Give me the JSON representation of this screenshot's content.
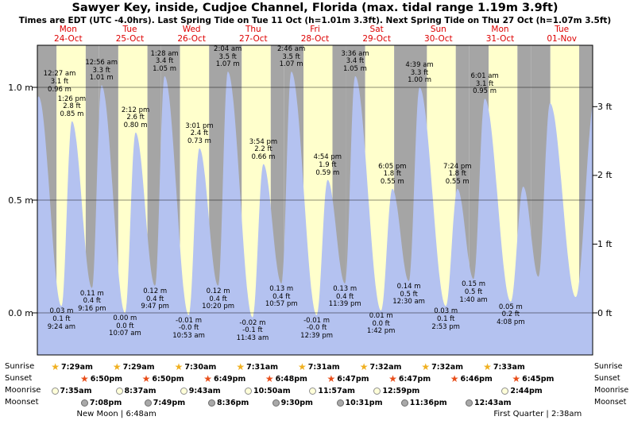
{
  "title": "Sawyer Key, inside, Cudjoe Channel, Florida (max. tidal range 1.19m 3.9ft)",
  "subtitle": "Times are EDT (UTC -4.0hrs). Last Spring Tide on Tue 11 Oct (h=1.01m 3.3ft). Next Spring Tide on Thu 27 Oct (h=1.07m 3.5ft)",
  "colors": {
    "day_band": "#ffffcc",
    "night_band": "#a5a5a5",
    "tide_fill": "#b4c2f0",
    "day_label": "#dd0000",
    "sunrise_star": "#f0b020",
    "sunset_star": "#e84e1a",
    "moonrise_circle": "#ffffd9",
    "moonrise_border": "#8f8f8f",
    "moonset_circle": "#a9a9a9",
    "moonset_border": "#6e6e6e"
  },
  "chart_data": {
    "type": "area",
    "title": "Tide height curve for Sawyer Key, inside, Cudjoe Channel, Florida",
    "ylim_m": [
      -0.19,
      1.19
    ],
    "hours_total": 216,
    "grid": true,
    "y_axis_left": [
      {
        "label": "1.0 m",
        "m": 1.0
      },
      {
        "label": "0.5 m",
        "m": 0.5
      },
      {
        "label": "0.0 m",
        "m": 0.0
      }
    ],
    "y_axis_right": [
      {
        "label": "3 ft",
        "ft": 3
      },
      {
        "label": "2 ft",
        "ft": 2
      },
      {
        "label": "1 ft",
        "ft": 1
      },
      {
        "label": "0 ft",
        "ft": 0
      }
    ],
    "x_axis_days": [
      {
        "weekday": "Mon",
        "date": "24-Oct"
      },
      {
        "weekday": "Tue",
        "date": "25-Oct"
      },
      {
        "weekday": "Wed",
        "date": "26-Oct"
      },
      {
        "weekday": "Thu",
        "date": "27-Oct"
      },
      {
        "weekday": "Fri",
        "date": "28-Oct"
      },
      {
        "weekday": "Sat",
        "date": "29-Oct"
      },
      {
        "weekday": "Sun",
        "date": "30-Oct"
      },
      {
        "weekday": "Mon",
        "date": "31-Oct"
      },
      {
        "weekday": "Tue",
        "date": "01-Nov"
      }
    ],
    "tide_events": [
      {
        "kind": "high",
        "day_index": 0,
        "time": "12:27 am",
        "ft": "3.1 ft",
        "m": "0.96 m"
      },
      {
        "kind": "low",
        "day_index": 0,
        "time": "9:24 am",
        "ft": "0.1 ft",
        "m": "0.03 m"
      },
      {
        "kind": "high",
        "day_index": 0,
        "time": "1:26 pm",
        "ft": "2.8 ft",
        "m": "0.85 m"
      },
      {
        "kind": "low",
        "day_index": 0,
        "time": "9:16 pm",
        "ft": "0.4 ft",
        "m": "0.11 m"
      },
      {
        "kind": "high",
        "day_index": 1,
        "time": "12:56 am",
        "ft": "3.3 ft",
        "m": "1.01 m"
      },
      {
        "kind": "low",
        "day_index": 1,
        "time": "10:07 am",
        "ft": "0.0 ft",
        "m": "0.00 m"
      },
      {
        "kind": "high",
        "day_index": 1,
        "time": "2:12 pm",
        "ft": "2.6 ft",
        "m": "0.80 m"
      },
      {
        "kind": "low",
        "day_index": 1,
        "time": "9:47 pm",
        "ft": "0.4 ft",
        "m": "0.12 m"
      },
      {
        "kind": "high",
        "day_index": 2,
        "time": "1:28 am",
        "ft": "3.4 ft",
        "m": "1.05 m"
      },
      {
        "kind": "low",
        "day_index": 2,
        "time": "10:53 am",
        "ft": "-0.0 ft",
        "m": "-0.01 m"
      },
      {
        "kind": "high",
        "day_index": 2,
        "time": "3:01 pm",
        "ft": "2.4 ft",
        "m": "0.73 m"
      },
      {
        "kind": "low",
        "day_index": 2,
        "time": "10:20 pm",
        "ft": "0.4 ft",
        "m": "0.12 m"
      },
      {
        "kind": "high",
        "day_index": 3,
        "time": "2:04 am",
        "ft": "3.5 ft",
        "m": "1.07 m"
      },
      {
        "kind": "low",
        "day_index": 3,
        "time": "11:43 am",
        "ft": "-0.1 ft",
        "m": "-0.02 m"
      },
      {
        "kind": "high",
        "day_index": 3,
        "time": "3:54 pm",
        "ft": "2.2 ft",
        "m": "0.66 m"
      },
      {
        "kind": "low",
        "day_index": 3,
        "time": "10:57 pm",
        "ft": "0.4 ft",
        "m": "0.13 m"
      },
      {
        "kind": "high",
        "day_index": 4,
        "time": "2:46 am",
        "ft": "3.5 ft",
        "m": "1.07 m"
      },
      {
        "kind": "low",
        "day_index": 4,
        "time": "12:39 pm",
        "ft": "-0.0 ft",
        "m": "-0.01 m"
      },
      {
        "kind": "high",
        "day_index": 4,
        "time": "4:54 pm",
        "ft": "1.9 ft",
        "m": "0.59 m"
      },
      {
        "kind": "low",
        "day_index": 4,
        "time": "11:39 pm",
        "ft": "0.4 ft",
        "m": "0.13 m"
      },
      {
        "kind": "high",
        "day_index": 5,
        "time": "3:36 am",
        "ft": "3.4 ft",
        "m": "1.05 m"
      },
      {
        "kind": "low",
        "day_index": 5,
        "time": "1:42 pm",
        "ft": "0.0 ft",
        "m": "0.01 m"
      },
      {
        "kind": "high",
        "day_index": 5,
        "time": "6:05 pm",
        "ft": "1.8 ft",
        "m": "0.55 m"
      },
      {
        "kind": "low",
        "day_index": 6,
        "time": "12:30 am",
        "ft": "0.5 ft",
        "m": "0.14 m"
      },
      {
        "kind": "high",
        "day_index": 6,
        "time": "4:39 am",
        "ft": "3.3 ft",
        "m": "1.00 m"
      },
      {
        "kind": "low",
        "day_index": 6,
        "time": "2:53 pm",
        "ft": "0.1 ft",
        "m": "0.03 m"
      },
      {
        "kind": "high",
        "day_index": 6,
        "time": "7:24 pm",
        "ft": "1.8 ft",
        "m": "0.55 m"
      },
      {
        "kind": "low",
        "day_index": 7,
        "time": "1:40 am",
        "ft": "0.5 ft",
        "m": "0.15 m"
      },
      {
        "kind": "high",
        "day_index": 7,
        "time": "6:01 am",
        "ft": "3.1 ft",
        "m": "0.95 m"
      },
      {
        "kind": "low",
        "day_index": 7,
        "time": "4:08 pm",
        "ft": "0.2 ft",
        "m": "0.05 m"
      }
    ],
    "sun_moon": {
      "sunrise": {
        "label": "Sunrise",
        "entries": [
          {
            "day_index": 0,
            "time": "7:29am"
          },
          {
            "day_index": 1,
            "time": "7:29am"
          },
          {
            "day_index": 2,
            "time": "7:30am"
          },
          {
            "day_index": 3,
            "time": "7:31am"
          },
          {
            "day_index": 4,
            "time": "7:31am"
          },
          {
            "day_index": 5,
            "time": "7:32am"
          },
          {
            "day_index": 6,
            "time": "7:32am"
          },
          {
            "day_index": 7,
            "time": "7:33am"
          }
        ]
      },
      "sunset": {
        "label": "Sunset",
        "entries": [
          {
            "day_index": 0,
            "time": "6:50pm"
          },
          {
            "day_index": 1,
            "time": "6:50pm"
          },
          {
            "day_index": 2,
            "time": "6:49pm"
          },
          {
            "day_index": 3,
            "time": "6:48pm"
          },
          {
            "day_index": 4,
            "time": "6:47pm"
          },
          {
            "day_index": 5,
            "time": "6:47pm"
          },
          {
            "day_index": 6,
            "time": "6:46pm"
          },
          {
            "day_index": 7,
            "time": "6:45pm"
          }
        ]
      },
      "moonrise": {
        "label": "Moonrise",
        "entries": [
          {
            "day_index": 0,
            "time": "7:35am"
          },
          {
            "day_index": 1,
            "time": "8:37am"
          },
          {
            "day_index": 2,
            "time": "9:43am"
          },
          {
            "day_index": 3,
            "time": "10:50am"
          },
          {
            "day_index": 4,
            "time": "11:57am"
          },
          {
            "day_index": 5,
            "time": "12:59pm"
          },
          {
            "day_index": 7,
            "time": "2:44pm"
          }
        ]
      },
      "moonset": {
        "label": "Moonset",
        "entries": [
          {
            "day_index": 0,
            "time": "7:08pm"
          },
          {
            "day_index": 1,
            "time": "7:49pm"
          },
          {
            "day_index": 2,
            "time": "8:36pm"
          },
          {
            "day_index": 3,
            "time": "9:30pm"
          },
          {
            "day_index": 4,
            "time": "10:31pm"
          },
          {
            "day_index": 5,
            "time": "11:36pm"
          },
          {
            "day_index": 7,
            "time": "12:43am"
          }
        ]
      }
    },
    "moon_phases": [
      {
        "label": "New Moon | 6:48am",
        "day_index": 1,
        "time": "6:48am"
      },
      {
        "label": "First Quarter | 2:38am",
        "day_index": 8,
        "time": "2:38am"
      }
    ]
  }
}
